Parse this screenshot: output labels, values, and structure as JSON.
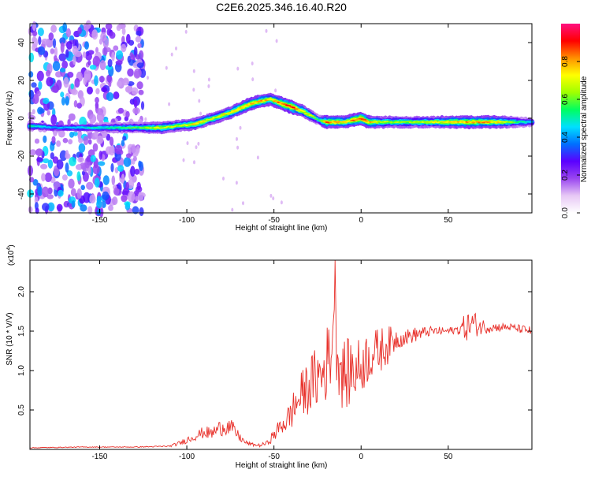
{
  "figure": {
    "title": "C2E6.2025.346.16.40.R20"
  },
  "chart_data": [
    {
      "type": "heatmap",
      "name": "spectrogram",
      "title": "C2E6.2025.346.16.40.R20",
      "xlabel": "Height of straight line (km)",
      "ylabel": "Frequency (Hz)",
      "xlim": [
        -190,
        98
      ],
      "ylim": [
        -50,
        50
      ],
      "x_ticks": [
        -150,
        -100,
        -50,
        0,
        50
      ],
      "y_ticks": [
        -40,
        -20,
        0,
        20,
        40
      ],
      "colorbar": {
        "label": "Normalized spectral amplitude",
        "range": [
          0.0,
          1.0
        ],
        "ticks": [
          "0.0",
          "0.2",
          "0.4",
          "0.6",
          "0.8"
        ],
        "colors": [
          "#ffffff",
          "#e7c8f5",
          "#9a46f0",
          "#5a00ff",
          "#0070ff",
          "#00e0ff",
          "#00ff60",
          "#a0ff00",
          "#ffff00",
          "#ff9000",
          "#ff0000",
          "#ff1080"
        ]
      },
      "noise_region_x": [
        -190,
        -125
      ],
      "ridge": {
        "x": [
          -190,
          -175,
          -160,
          -145,
          -135,
          -125,
          -115,
          -105,
          -95,
          -85,
          -75,
          -65,
          -58,
          -52,
          -46,
          -40,
          -34,
          -28,
          -24,
          -20,
          -16,
          -10,
          -4,
          0,
          4,
          10,
          20,
          30,
          40,
          50,
          60,
          70,
          80,
          90,
          98
        ],
        "f": [
          -4,
          -5,
          -5,
          -5,
          -5,
          -5,
          -5,
          -4,
          -3,
          0,
          3,
          7,
          9,
          10,
          8,
          6,
          4,
          1,
          -1,
          -2,
          -2,
          -2,
          -1,
          0,
          -2,
          -2,
          -2,
          -2,
          -2,
          -2,
          -2,
          -2,
          -2,
          -2,
          -2
        ],
        "amp": [
          0.55,
          0.45,
          0.5,
          0.55,
          0.6,
          0.65,
          0.75,
          0.7,
          0.8,
          0.75,
          0.8,
          0.85,
          0.85,
          0.8,
          0.9,
          0.95,
          0.8,
          0.7,
          0.55,
          0.9,
          0.85,
          0.8,
          0.9,
          0.95,
          0.85,
          0.75,
          0.7,
          0.7,
          0.75,
          0.8,
          0.85,
          0.85,
          0.8,
          0.6,
          0.5
        ]
      }
    },
    {
      "type": "line",
      "name": "snr",
      "xlabel": "Height of straight line (km)",
      "ylabel": "SNR (10 * V/V)",
      "y_multiplier": "(x10",
      "y_multiplier_exp": "4",
      "y_multiplier_close": ")",
      "xlim": [
        -190,
        98
      ],
      "ylim": [
        0,
        2.4
      ],
      "x_ticks": [
        -150,
        -100,
        -50,
        0,
        50
      ],
      "y_ticks": [
        0.5,
        1.0,
        1.5,
        2.0
      ],
      "color": "#e8302a",
      "series": [
        {
          "name": "SNR",
          "x": [
            -190,
            -160,
            -130,
            -110,
            -104,
            -98,
            -94,
            -90,
            -86,
            -82,
            -78,
            -74,
            -70,
            -66,
            -62,
            -58,
            -54,
            -50,
            -46,
            -42,
            -38,
            -34,
            -30,
            -26,
            -22,
            -18,
            -16,
            -15,
            -14,
            -12,
            -10,
            -8,
            -6,
            -4,
            -2,
            0,
            3,
            6,
            10,
            15,
            20,
            25,
            30,
            40,
            50,
            55,
            60,
            64,
            68,
            75,
            85,
            98
          ],
          "y": [
            0.02,
            0.03,
            0.03,
            0.04,
            0.08,
            0.14,
            0.18,
            0.22,
            0.2,
            0.26,
            0.3,
            0.27,
            0.16,
            0.08,
            0.06,
            0.05,
            0.08,
            0.18,
            0.3,
            0.38,
            0.55,
            0.7,
            0.8,
            0.9,
            0.95,
            1.2,
            1.5,
            2.35,
            1.3,
            1.05,
            0.95,
            0.95,
            1.0,
            1.0,
            1.02,
            1.05,
            1.15,
            1.2,
            1.25,
            1.32,
            1.4,
            1.42,
            1.45,
            1.5,
            1.5,
            1.52,
            1.55,
            1.6,
            1.56,
            1.55,
            1.55,
            1.5
          ],
          "noise": [
            0.005,
            0.005,
            0.005,
            0.01,
            0.03,
            0.05,
            0.06,
            0.08,
            0.08,
            0.1,
            0.12,
            0.1,
            0.06,
            0.03,
            0.02,
            0.02,
            0.03,
            0.08,
            0.12,
            0.18,
            0.25,
            0.3,
            0.35,
            0.4,
            0.45,
            0.5,
            0.55,
            0.1,
            0.5,
            0.5,
            0.45,
            0.45,
            0.45,
            0.4,
            0.4,
            0.35,
            0.35,
            0.3,
            0.3,
            0.25,
            0.15,
            0.1,
            0.1,
            0.06,
            0.05,
            0.05,
            0.18,
            0.18,
            0.12,
            0.06,
            0.05,
            0.06
          ]
        }
      ]
    }
  ]
}
